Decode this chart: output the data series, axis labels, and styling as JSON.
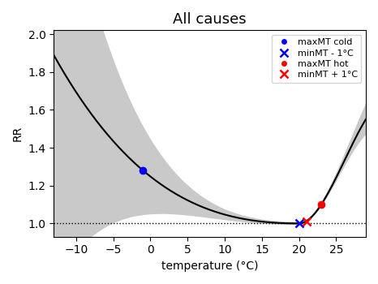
{
  "title": "All causes",
  "xlabel": "temperature (°C)",
  "ylabel": "RR",
  "xlim": [
    -13,
    29
  ],
  "ylim": [
    0.93,
    2.02
  ],
  "x_ticks": [
    -10,
    -5,
    0,
    5,
    10,
    15,
    20,
    25
  ],
  "y_ticks": [
    1.0,
    1.2,
    1.4,
    1.6,
    1.8,
    2.0
  ],
  "curve_color": "black",
  "band_color": "#888888",
  "band_alpha": 0.45,
  "hline_y": 1.0,
  "hline_style": "dotted",
  "hline_color": "black",
  "min_temp": 20.0,
  "cold_peak_temp": -1.0,
  "cold_peak_rr": 1.28,
  "minMT_cold_temp": 20.0,
  "minMT_cold_rr": 1.0,
  "hot_peak_temp": 23.0,
  "hot_peak_rr": 1.1,
  "minMT_hot_temp": 21.0,
  "minMT_hot_rr": 1.01,
  "legend_entries": [
    "maxMT cold",
    "minMT - 1°C",
    "maxMT hot",
    "minMT + 1°C"
  ],
  "title_fontsize": 13,
  "figsize": [
    4.66,
    3.5
  ],
  "dpi": 100
}
